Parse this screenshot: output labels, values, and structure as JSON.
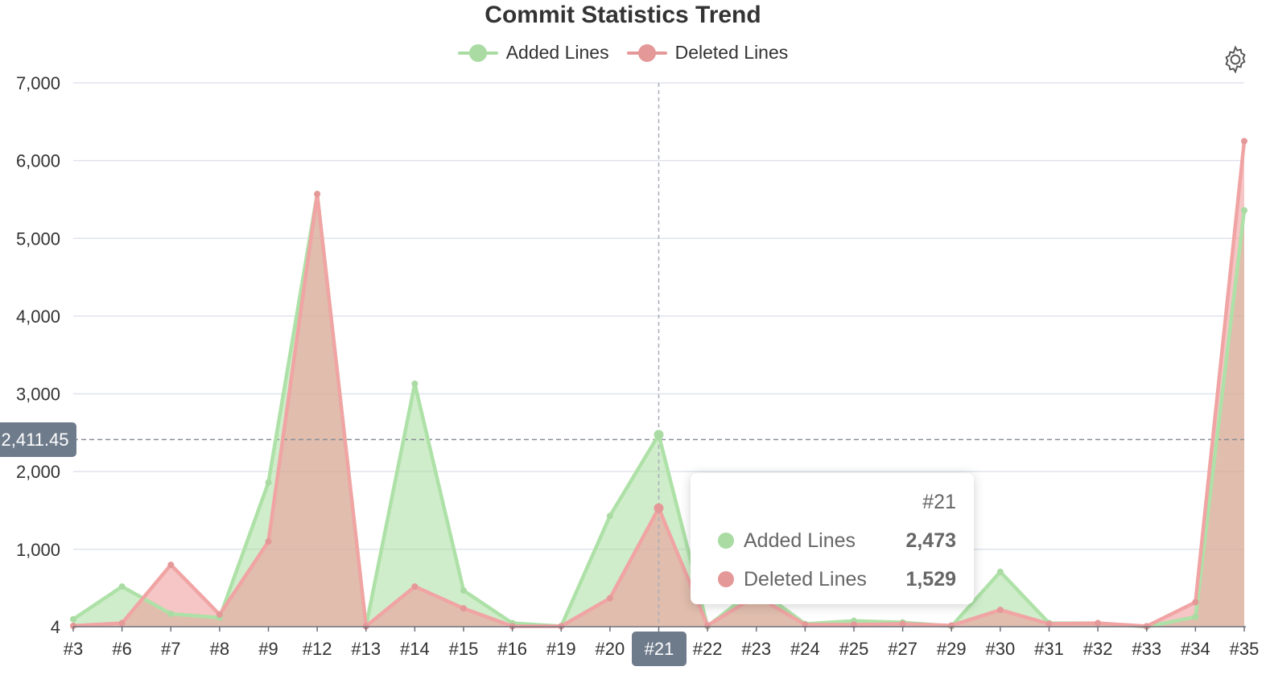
{
  "chart_data": {
    "type": "area",
    "title": "Commit Statistics Trend",
    "categories": [
      "#3",
      "#6",
      "#7",
      "#8",
      "#9",
      "#12",
      "#13",
      "#14",
      "#15",
      "#16",
      "#19",
      "#20",
      "#21",
      "#22",
      "#23",
      "#24",
      "#25",
      "#27",
      "#29",
      "#30",
      "#31",
      "#32",
      "#33",
      "#34",
      "#35"
    ],
    "series": [
      {
        "name": "Added Lines",
        "color": "#a9dba3",
        "values": [
          100,
          520,
          170,
          120,
          1860,
          5570,
          10,
          3130,
          470,
          50,
          10,
          1430,
          2473,
          10,
          500,
          40,
          80,
          60,
          10,
          710,
          50,
          50,
          4,
          130,
          5360
        ]
      },
      {
        "name": "Deleted Lines",
        "color": "#ee9f9f",
        "values": [
          15,
          50,
          800,
          160,
          1100,
          5570,
          10,
          520,
          240,
          10,
          10,
          370,
          1529,
          20,
          400,
          30,
          30,
          40,
          20,
          220,
          40,
          50,
          10,
          320,
          6250
        ]
      }
    ],
    "y_ticks": [
      "4",
      "1,000",
      "2,000",
      "3,000",
      "4,000",
      "5,000",
      "6,000",
      "7,000"
    ],
    "ylim": [
      4,
      7000
    ],
    "grid": true,
    "legend_position": "top-center"
  },
  "tooltip": {
    "category": "#21",
    "rows": [
      {
        "name": "Added Lines",
        "value": "2,473",
        "color": "#a9dba3"
      },
      {
        "name": "Deleted Lines",
        "value": "1,529",
        "color": "#e59898"
      }
    ]
  },
  "crosshair": {
    "y_value_label": "2,411.45",
    "y_value": 2411.45,
    "x_label": "#21"
  },
  "toolbar": {
    "icon": "gear-icon"
  }
}
